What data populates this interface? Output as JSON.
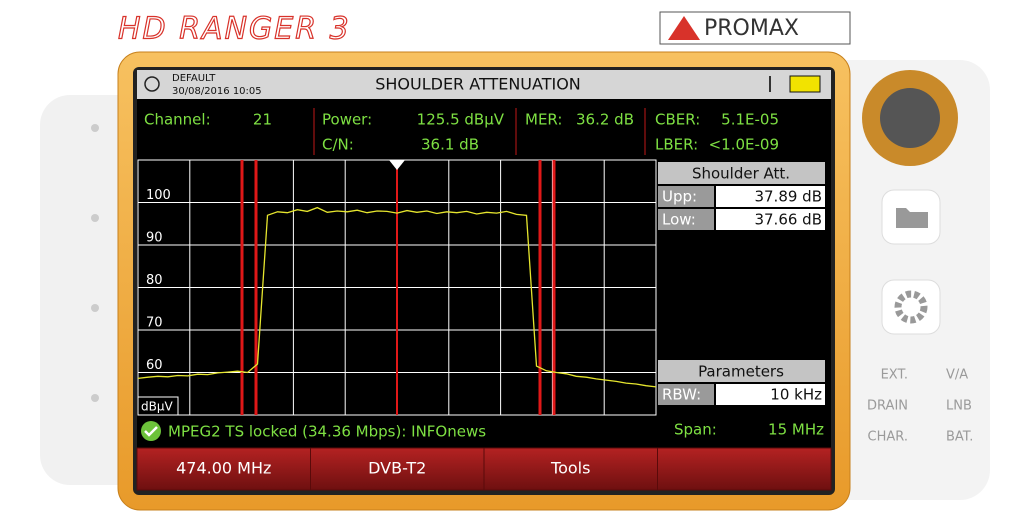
{
  "brand": {
    "product": "HD RANGER 3",
    "logo": "PROMAX"
  },
  "header": {
    "preset": "DEFAULT",
    "datetime": "30/08/2016 10:05",
    "title": "SHOULDER ATTENUATION"
  },
  "measurements": {
    "channel": {
      "label": "Channel:",
      "value": "21"
    },
    "power": {
      "label": "Power:",
      "value": "125.5 dBµV"
    },
    "cn": {
      "label": "C/N:",
      "value": "36.1 dB"
    },
    "mer": {
      "label": "MER:",
      "value": "36.2 dB"
    },
    "cber": {
      "label": "CBER:",
      "value": "5.1E-05"
    },
    "lber": {
      "label": "LBER:",
      "value": "<1.0E-09"
    }
  },
  "shoulder": {
    "title": "Shoulder Att.",
    "upper": {
      "label": "Upp:",
      "value": "37.89 dB"
    },
    "lower": {
      "label": "Low:",
      "value": "37.66 dB"
    }
  },
  "parameters": {
    "title": "Parameters",
    "rbw": {
      "label": "RBW:",
      "value": "10 kHz"
    }
  },
  "status": {
    "message": "MPEG2 TS locked (34.36 Mbps): INFOnews",
    "span": {
      "label": "Span:",
      "value": "15 MHz"
    }
  },
  "softkeys": [
    "474.00 MHz",
    "DVB-T2",
    "Tools"
  ],
  "side_labels": [
    "EXT.",
    "V/A",
    "DRAIN",
    "LNB",
    "CHAR.",
    "BAT."
  ],
  "chart_data": {
    "type": "line",
    "y_label": "dBµV",
    "color": "#e6e62e",
    "values": [
      58.6,
      58.9,
      59.1,
      59.0,
      59.3,
      59.2,
      59.6,
      59.5,
      59.9,
      60.1,
      60.3,
      60.0,
      62.0,
      97.0,
      97.8,
      97.6,
      98.3,
      97.9,
      98.8,
      97.7,
      98.0,
      97.8,
      98.2,
      97.6,
      98.0,
      97.9,
      97.5,
      98.1,
      97.7,
      98.0,
      97.4,
      97.8,
      97.6,
      97.9,
      97.3,
      97.7,
      97.5,
      97.9,
      97.2,
      97.0,
      61.5,
      60.4,
      60.0,
      59.7,
      59.1,
      58.9,
      58.5,
      58.2,
      57.9,
      57.5,
      57.3,
      56.9,
      56.6
    ],
    "ylim": [
      50,
      110
    ],
    "yticks": [
      60,
      70,
      80,
      90,
      100
    ],
    "grid": true
  }
}
